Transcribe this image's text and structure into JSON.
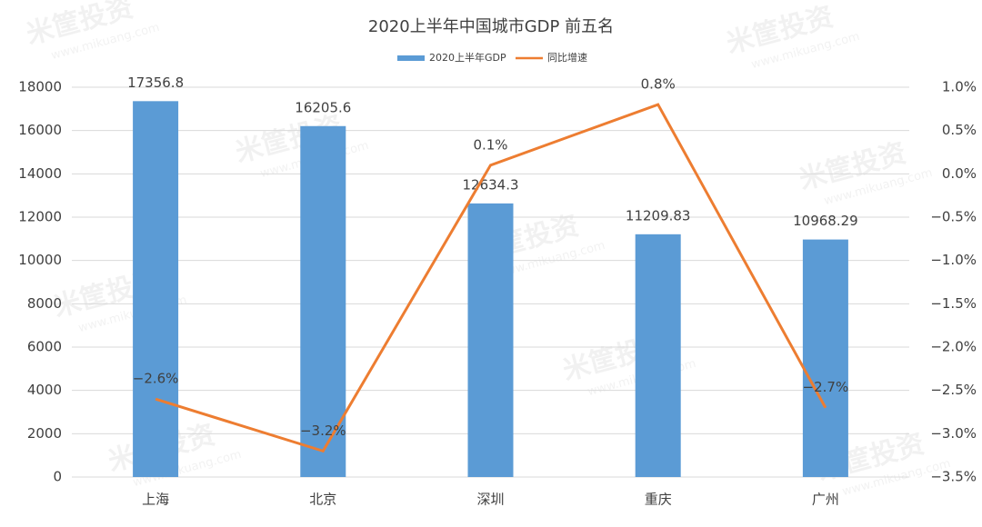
{
  "chart_data": {
    "type": "bar",
    "title": "2020上半年中国城市GDP 前五名",
    "categories": [
      "上海",
      "北京",
      "深圳",
      "重庆",
      "广州"
    ],
    "series": [
      {
        "name": "2020上半年GDP",
        "type": "bar",
        "color": "#5b9bd5",
        "values": [
          17356.8,
          16205.6,
          12634.3,
          11209.83,
          10968.29
        ]
      },
      {
        "name": "同比增速",
        "type": "line",
        "axis": "y2",
        "color": "#ed7d31",
        "values": [
          -2.6,
          -3.2,
          0.1,
          0.8,
          -2.7
        ],
        "value_labels": [
          "−2.6%",
          "−3.2%",
          "0.1%",
          "0.8%",
          "−2.7%"
        ]
      }
    ],
    "ylim": [
      0,
      18000
    ],
    "yticks": [
      0,
      2000,
      4000,
      6000,
      8000,
      10000,
      12000,
      14000,
      16000,
      18000
    ],
    "y2lim": [
      -3.5,
      1.0
    ],
    "y2ticks": [
      {
        "value": -3.5,
        "label": "−3.5%"
      },
      {
        "value": -3.0,
        "label": "−3.0%"
      },
      {
        "value": -2.5,
        "label": "−2.5%"
      },
      {
        "value": -2.0,
        "label": "−2.0%"
      },
      {
        "value": -1.5,
        "label": "−1.5%"
      },
      {
        "value": -1.0,
        "label": "−1.0%"
      },
      {
        "value": -0.5,
        "label": "−0.5%"
      },
      {
        "value": 0,
        "label": "0.0%"
      },
      {
        "value": 0.5,
        "label": "0.5%"
      },
      {
        "value": 1.0,
        "label": "1.0%"
      }
    ],
    "grid": true,
    "legend": "top",
    "watermark": [
      "米筐投资",
      "www.mikuang.com"
    ]
  }
}
